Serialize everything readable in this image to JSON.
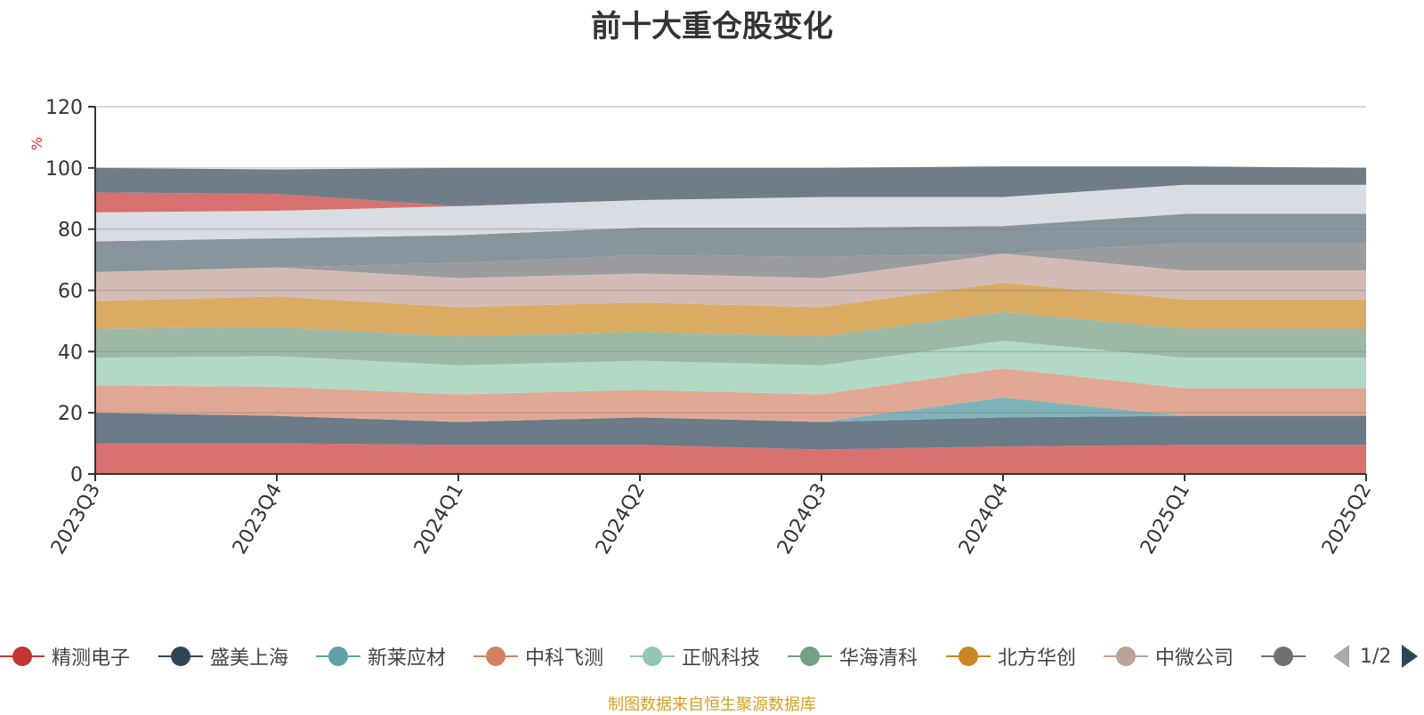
{
  "chart_data": {
    "type": "area",
    "title": "前十大重仓股变化",
    "ylabel": "%",
    "ylim": [
      0,
      120
    ],
    "yticks": [
      0,
      20,
      40,
      60,
      80,
      100,
      120
    ],
    "stacked": true,
    "grid": true,
    "categories": [
      "2023Q3",
      "2023Q4",
      "2024Q1",
      "2024Q2",
      "2024Q3",
      "2024Q4",
      "2025Q1",
      "2025Q2"
    ],
    "series": [
      {
        "name": "精测电子",
        "color": "#d7716f",
        "values": [
          10,
          10,
          9.5,
          9.5,
          8,
          9,
          9.5,
          9.5
        ]
      },
      {
        "name": "盛美上海",
        "color": "#6b7b88",
        "values": [
          10,
          9,
          7.5,
          9,
          9,
          9.5,
          9.5,
          9.5
        ]
      },
      {
        "name": "新莱应材",
        "color": "#7fb3ba",
        "values": [
          0,
          0,
          0,
          0,
          0,
          6.5,
          0,
          0
        ]
      },
      {
        "name": "中科飞测",
        "color": "#e0a894",
        "values": [
          9,
          9.5,
          9,
          9,
          9,
          9.5,
          9,
          9
        ]
      },
      {
        "name": "正帆科技",
        "color": "#b1d9c5",
        "values": [
          9,
          10,
          9.5,
          9.5,
          9.5,
          9,
          10,
          10
        ]
      },
      {
        "name": "华海清科",
        "color": "#9eb8a6",
        "values": [
          9.5,
          9.5,
          9.5,
          9.5,
          9.5,
          9.5,
          9.5,
          9.5
        ]
      },
      {
        "name": "北方华创",
        "color": "#d9ab63",
        "values": [
          9,
          10,
          9.5,
          9.5,
          9.5,
          9.5,
          9.5,
          9.5
        ]
      },
      {
        "name": "中微公司",
        "color": "#d3bbb5",
        "values": [
          9.5,
          9.5,
          9.5,
          9.5,
          9.5,
          9.5,
          9.5,
          9.5
        ]
      },
      {
        "name": "",
        "color": "#9b9ca0",
        "values": [
          0,
          0,
          5,
          6,
          7,
          0,
          9,
          9
        ]
      },
      {
        "name": "",
        "color": "#88959c",
        "values": [
          10,
          9.5,
          9,
          9,
          9.5,
          9,
          9.5,
          9.5
        ]
      },
      {
        "name": "",
        "color": "#d8dce3",
        "values": [
          9.5,
          9,
          9.5,
          9,
          10,
          9.5,
          9.5,
          9.5
        ]
      },
      {
        "name": "",
        "color": "#d7716f",
        "values": [
          6.5,
          5.5,
          0,
          0,
          0,
          0,
          0,
          0
        ]
      },
      {
        "name": "",
        "color": "#6f7d89",
        "values": [
          8,
          8,
          12.5,
          10.5,
          9.5,
          10,
          6,
          5.5
        ]
      }
    ]
  },
  "legend": {
    "items": [
      {
        "label": "精测电子",
        "color": "#c23531"
      },
      {
        "label": "盛美上海",
        "color": "#2f4554"
      },
      {
        "label": "新莱应材",
        "color": "#61a0a8"
      },
      {
        "label": "中科飞测",
        "color": "#d48265"
      },
      {
        "label": "正帆科技",
        "color": "#91c7ae"
      },
      {
        "label": "华海清科",
        "color": "#749f83"
      },
      {
        "label": "北方华创",
        "color": "#ca8622"
      },
      {
        "label": "中微公司",
        "color": "#bda29a"
      },
      {
        "label": "",
        "color": "#6e7074"
      }
    ],
    "page": "1/2"
  },
  "footer": {
    "source": "制图数据来自恒生聚源数据库"
  }
}
